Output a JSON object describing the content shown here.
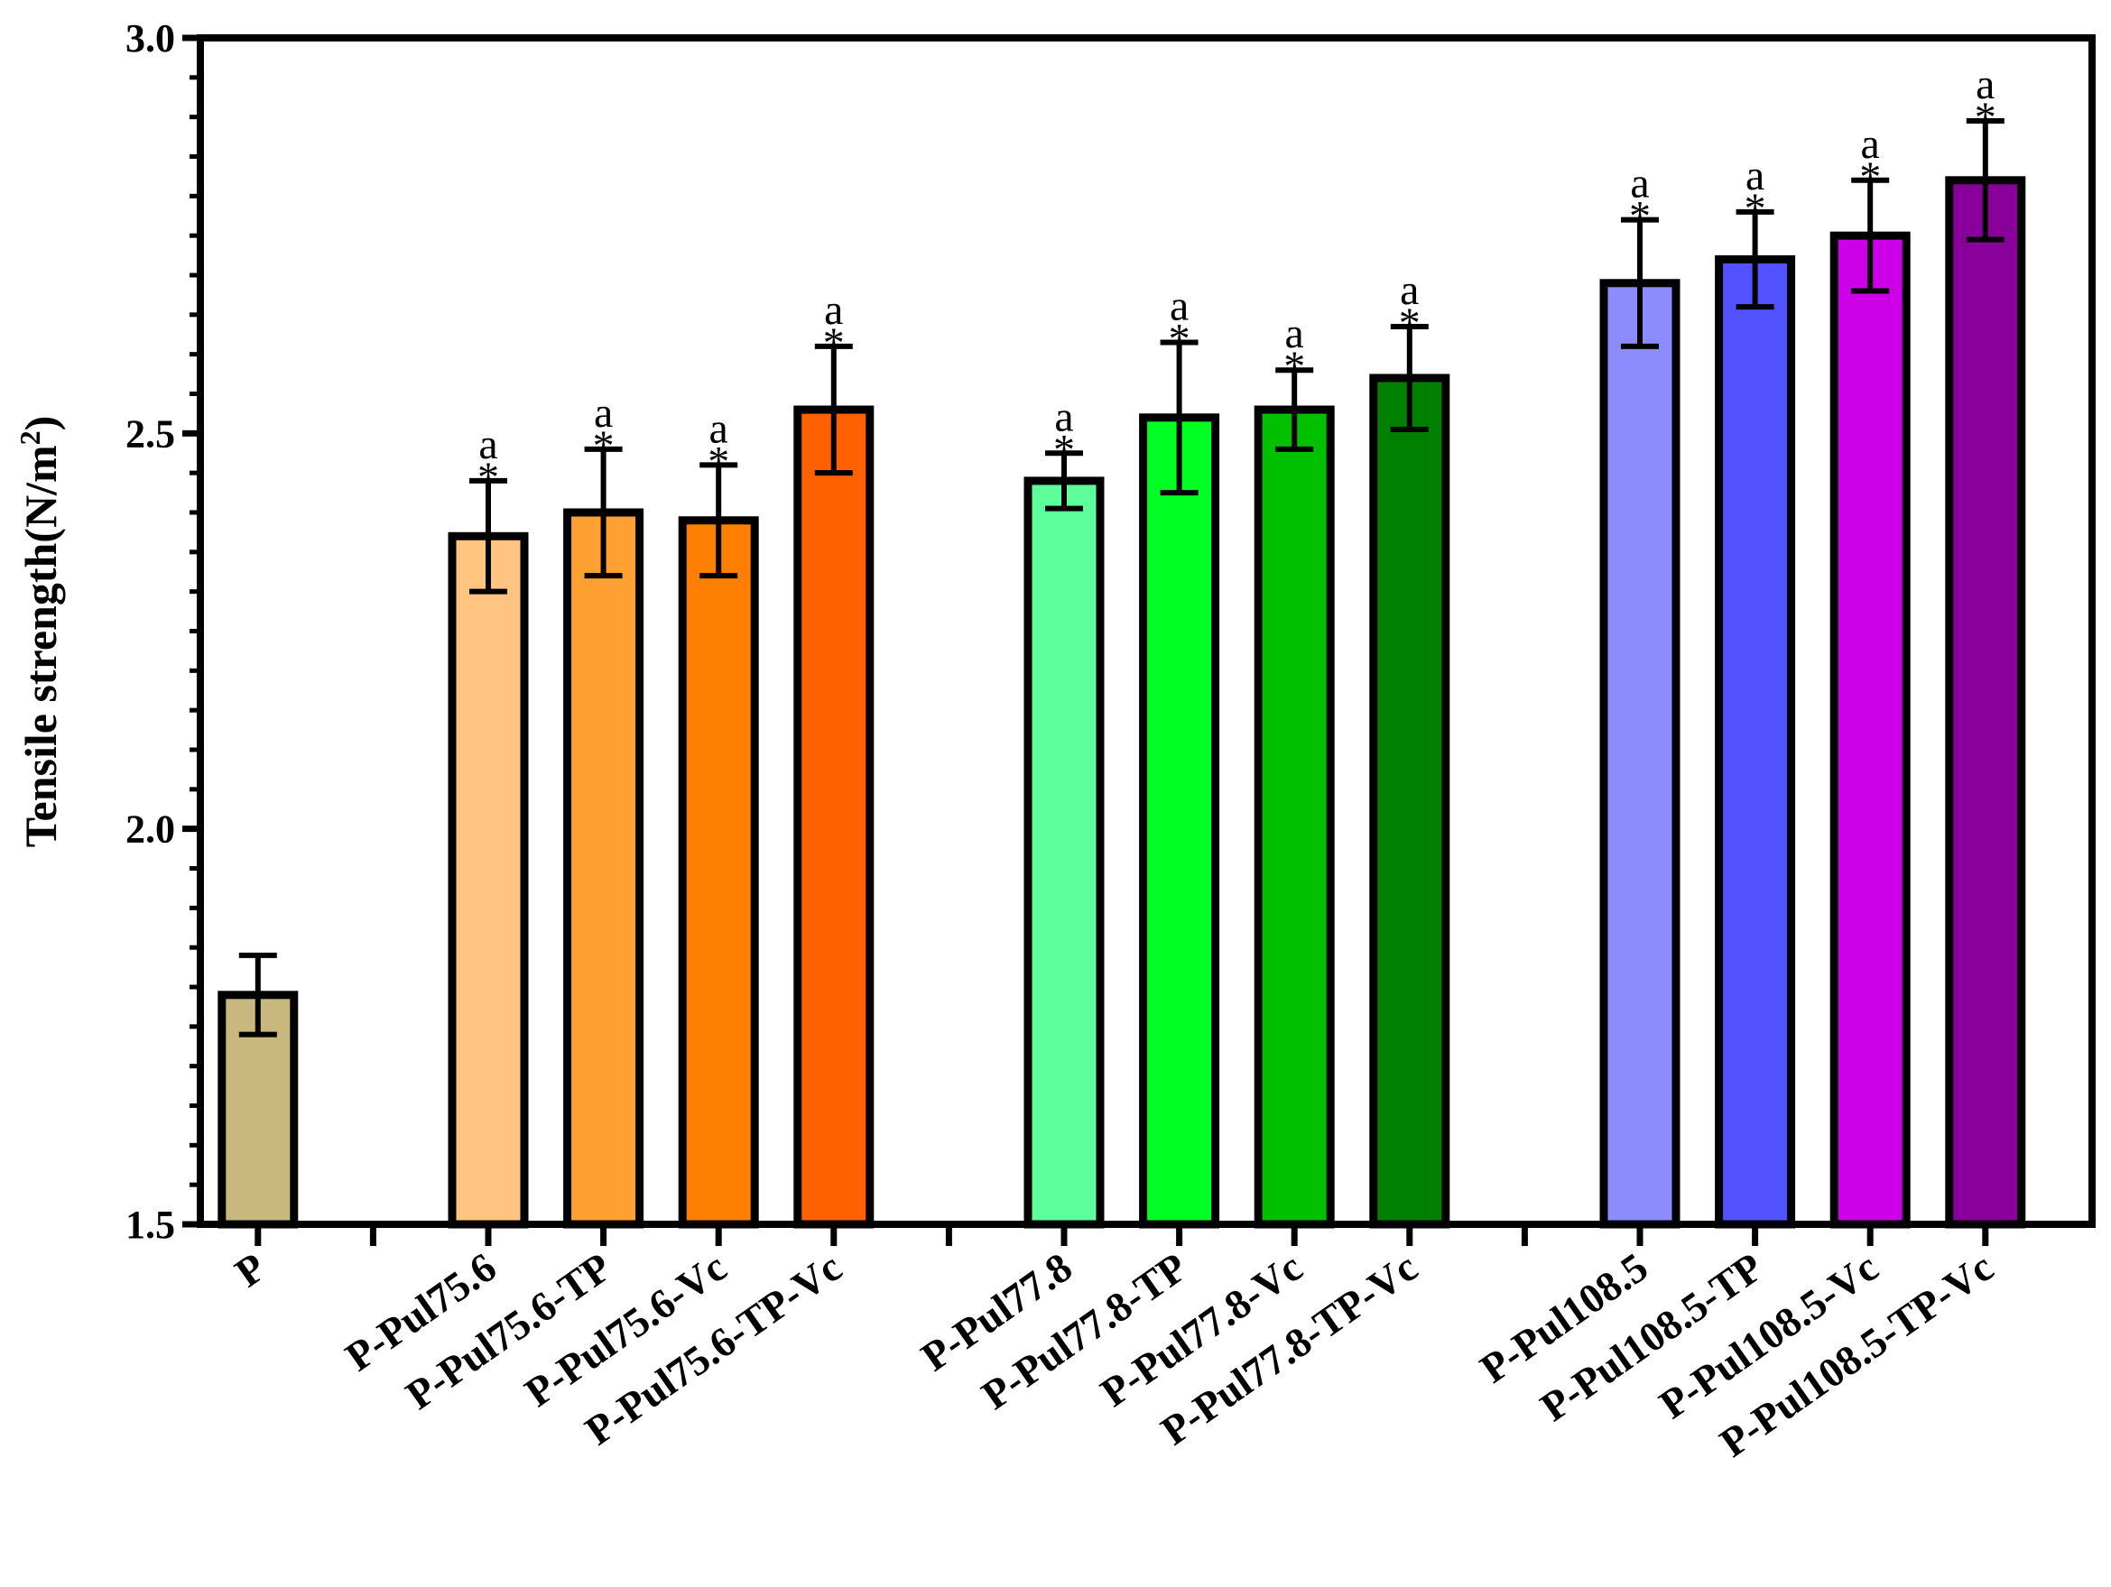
{
  "chart_data": {
    "type": "bar",
    "title": "",
    "xlabel": "",
    "ylabel": "Tensile strength(N/m",
    "ylabel_sup": "2",
    "ylabel_close": ")",
    "ylim": [
      1.5,
      3.0
    ],
    "y_ticks": [
      "1.5",
      "2.0",
      "2.5",
      "3.0"
    ],
    "y_tick_values": [
      1.5,
      2.0,
      2.5,
      3.0
    ],
    "categories": [
      "P",
      "",
      "P-Pul75.6",
      "P-Pul75.6-TP",
      "P-Pul75.6-Vc",
      "P-Pul75.6-TP-Vc",
      "",
      "P-Pul77.8",
      "P-Pul77.8-TP",
      "P-Pul77.8-Vc",
      "P-Pul77.8-TP-Vc",
      "",
      "P-Pul108.5",
      "P-Pul108.5-TP",
      "P-Pul108.5-Vc",
      "P-Pul108.5-TP-Vc"
    ],
    "values": [
      1.79,
      null,
      2.37,
      2.4,
      2.39,
      2.53,
      null,
      2.44,
      2.52,
      2.53,
      2.57,
      null,
      2.69,
      2.72,
      2.75,
      2.82
    ],
    "errors": [
      0.05,
      null,
      0.07,
      0.08,
      0.07,
      0.08,
      null,
      0.035,
      0.095,
      0.05,
      0.065,
      null,
      0.08,
      0.06,
      0.07,
      0.075
    ],
    "significance_star": [
      "",
      "",
      "*",
      "*",
      "*",
      "*",
      "",
      "*",
      "*",
      "*",
      "*",
      "",
      "*",
      "*",
      "*",
      "*"
    ],
    "significance_letter": [
      "",
      "",
      "a",
      "a",
      "a",
      "a",
      "",
      "a",
      "a",
      "a",
      "a",
      "",
      "a",
      "a",
      "a",
      "a"
    ],
    "colors": [
      "#C8B87E",
      null,
      "#FFC480",
      "#FFA033",
      "#FF8000",
      "#FF6000",
      null,
      "#5CFF9A",
      "#00FF22",
      "#00C000",
      "#008000",
      null,
      "#8C8CFF",
      "#5252FF",
      "#CC00E6",
      "#880099"
    ],
    "grid": false,
    "legend": "none"
  }
}
